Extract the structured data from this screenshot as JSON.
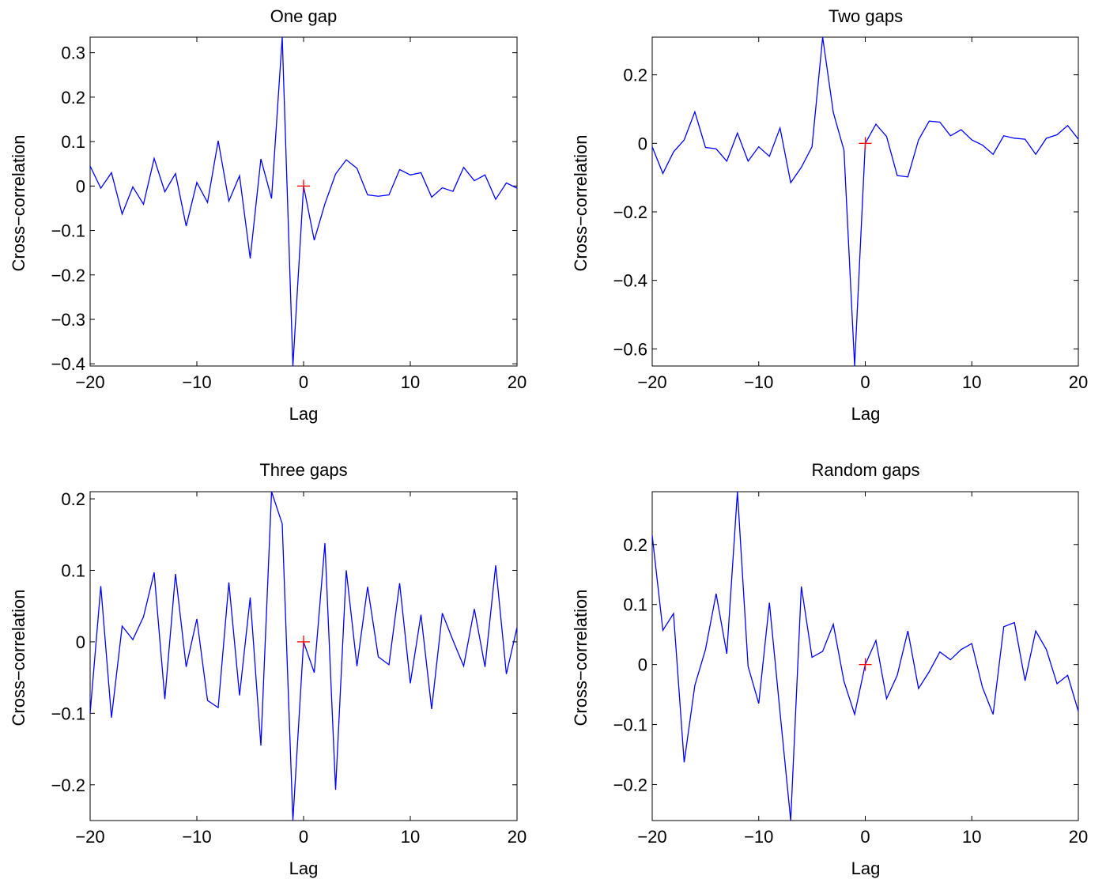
{
  "chart_data": [
    {
      "type": "line",
      "title": "One gap",
      "xlabel": "Lag",
      "ylabel": "Cross−correlation",
      "xlim": [
        -20,
        20
      ],
      "ylim": [
        -0.405,
        0.335
      ],
      "xticks": [
        -20,
        -10,
        0,
        10,
        20
      ],
      "yticks": [
        0.3,
        0.2,
        0.1,
        0,
        -0.1,
        -0.2,
        -0.3,
        -0.4
      ],
      "grid": false,
      "series": [
        {
          "color": "#0000ff",
          "x": [
            -20,
            -19,
            -18,
            -17,
            -16,
            -15,
            -14,
            -13,
            -12,
            -11,
            -10,
            -9,
            -8,
            -7,
            -6,
            -5,
            -4,
            -3,
            -2,
            -1,
            0,
            1,
            2,
            3,
            4,
            5,
            6,
            7,
            8,
            9,
            10,
            11,
            12,
            13,
            14,
            15,
            16,
            17,
            18,
            19,
            20
          ],
          "y": [
            0.045,
            -0.005,
            0.03,
            -0.063,
            -0.002,
            -0.041,
            0.062,
            -0.013,
            0.028,
            -0.09,
            0.008,
            -0.037,
            0.102,
            -0.034,
            0.023,
            -0.163,
            0.061,
            -0.028,
            0.335,
            -0.405,
            0.0,
            -0.122,
            -0.04,
            0.027,
            0.059,
            0.04,
            -0.02,
            -0.023,
            -0.02,
            0.037,
            0.025,
            0.03,
            -0.025,
            -0.004,
            -0.012,
            0.042,
            0.012,
            0.025,
            -0.03,
            0.007,
            -0.005
          ]
        }
      ],
      "marker": {
        "x": 0,
        "y": 0,
        "symbol": "+",
        "color": "#ff0000"
      }
    },
    {
      "type": "line",
      "title": "Two gaps",
      "xlabel": "Lag",
      "ylabel": "Cross−correlation",
      "xlim": [
        -20,
        20
      ],
      "ylim": [
        -0.65,
        0.31
      ],
      "xticks": [
        -20,
        -10,
        0,
        10,
        20
      ],
      "yticks": [
        0.2,
        0,
        -0.2,
        -0.4,
        -0.6
      ],
      "grid": false,
      "series": [
        {
          "color": "#0000ff",
          "x": [
            -20,
            -19,
            -18,
            -17,
            -16,
            -15,
            -14,
            -13,
            -12,
            -11,
            -10,
            -9,
            -8,
            -7,
            -6,
            -5,
            -4,
            -3,
            -2,
            -1,
            0,
            1,
            2,
            3,
            4,
            5,
            6,
            7,
            8,
            9,
            10,
            11,
            12,
            13,
            14,
            15,
            16,
            17,
            18,
            19,
            20
          ],
          "y": [
            -0.01,
            -0.088,
            -0.025,
            0.01,
            0.092,
            -0.012,
            -0.016,
            -0.052,
            0.03,
            -0.052,
            -0.01,
            -0.038,
            0.045,
            -0.115,
            -0.07,
            -0.01,
            0.31,
            0.09,
            -0.02,
            -0.65,
            0.0,
            0.056,
            0.02,
            -0.094,
            -0.098,
            0.01,
            0.065,
            0.062,
            0.022,
            0.04,
            0.01,
            -0.005,
            -0.032,
            0.022,
            0.015,
            0.012,
            -0.032,
            0.015,
            0.025,
            0.052,
            0.012
          ]
        }
      ],
      "marker": {
        "x": 0,
        "y": 0,
        "symbol": "+",
        "color": "#ff0000"
      }
    },
    {
      "type": "line",
      "title": "Three gaps",
      "xlabel": "Lag",
      "ylabel": "Cross−correlation",
      "xlim": [
        -20,
        20
      ],
      "ylim": [
        -0.25,
        0.21
      ],
      "xticks": [
        -20,
        -10,
        0,
        10,
        20
      ],
      "yticks": [
        0.2,
        0.1,
        0,
        -0.1,
        -0.2
      ],
      "grid": false,
      "series": [
        {
          "color": "#0000ff",
          "x": [
            -20,
            -19,
            -18,
            -17,
            -16,
            -15,
            -14,
            -13,
            -12,
            -11,
            -10,
            -9,
            -8,
            -7,
            -6,
            -5,
            -4,
            -3,
            -2,
            -1,
            0,
            1,
            2,
            3,
            4,
            5,
            6,
            7,
            8,
            9,
            10,
            11,
            12,
            13,
            14,
            15,
            16,
            17,
            18,
            19,
            20
          ],
          "y": [
            -0.1,
            0.078,
            -0.106,
            0.022,
            0.003,
            0.035,
            0.097,
            -0.08,
            0.095,
            -0.035,
            0.032,
            -0.082,
            -0.092,
            0.083,
            -0.075,
            0.062,
            -0.145,
            0.21,
            0.165,
            -0.25,
            0.0,
            -0.043,
            0.138,
            -0.207,
            0.1,
            -0.034,
            0.077,
            -0.021,
            -0.032,
            0.082,
            -0.058,
            0.038,
            -0.094,
            0.04,
            0.002,
            -0.034,
            0.046,
            -0.035,
            0.107,
            -0.045,
            0.02
          ]
        }
      ],
      "marker": {
        "x": 0,
        "y": 0,
        "symbol": "+",
        "color": "#ff0000"
      }
    },
    {
      "type": "line",
      "title": "Random gaps",
      "xlabel": "Lag",
      "ylabel": "Cross−correlation",
      "xlim": [
        -20,
        20
      ],
      "ylim": [
        -0.26,
        0.288
      ],
      "xticks": [
        -20,
        -10,
        0,
        10,
        20
      ],
      "yticks": [
        0.2,
        0.1,
        0,
        -0.1,
        -0.2
      ],
      "grid": false,
      "series": [
        {
          "color": "#0000ff",
          "x": [
            -20,
            -19,
            -18,
            -17,
            -16,
            -15,
            -14,
            -13,
            -12,
            -11,
            -10,
            -9,
            -8,
            -7,
            -6,
            -5,
            -4,
            -3,
            -2,
            -1,
            0,
            1,
            2,
            3,
            4,
            5,
            6,
            7,
            8,
            9,
            10,
            11,
            12,
            13,
            14,
            15,
            16,
            17,
            18,
            19,
            20
          ],
          "y": [
            0.215,
            0.057,
            0.085,
            -0.163,
            -0.035,
            0.025,
            0.118,
            0.018,
            0.288,
            -0.003,
            -0.065,
            0.103,
            -0.08,
            -0.26,
            0.13,
            0.012,
            0.022,
            0.067,
            -0.028,
            -0.083,
            0.0,
            0.04,
            -0.057,
            -0.018,
            0.056,
            -0.04,
            -0.012,
            0.021,
            0.008,
            0.025,
            0.035,
            -0.038,
            -0.083,
            0.063,
            0.07,
            -0.027,
            0.056,
            0.025,
            -0.032,
            -0.018,
            -0.078
          ]
        }
      ],
      "marker": {
        "x": 0,
        "y": 0,
        "symbol": "+",
        "color": "#ff0000"
      }
    }
  ]
}
